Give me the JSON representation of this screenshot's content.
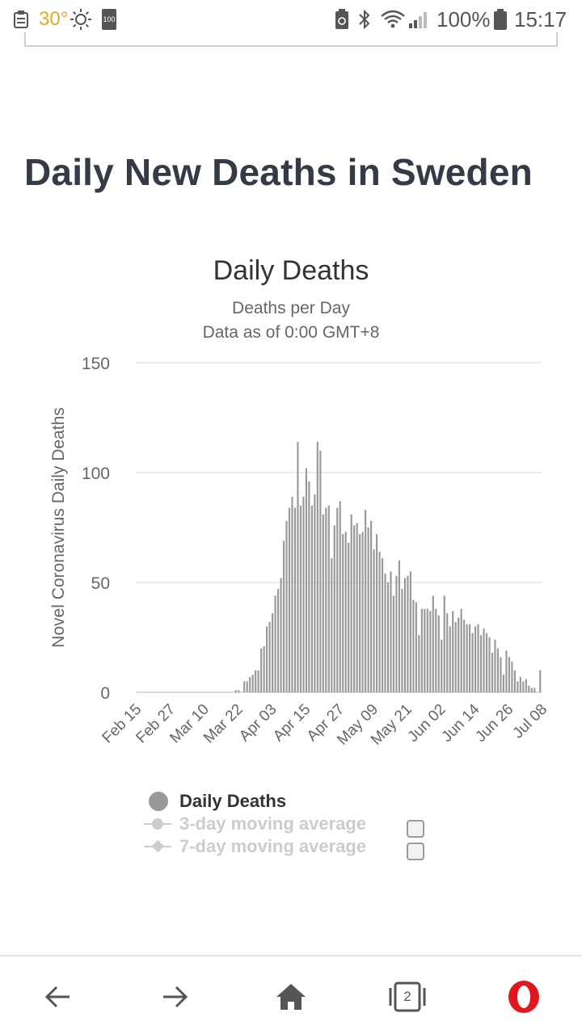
{
  "status_bar": {
    "temperature": "30°",
    "battery_small": "100",
    "battery_percent": "100%",
    "time": "15:17",
    "icons": [
      "clipboard-icon",
      "sun-icon",
      "battery-saver-icon",
      "bluetooth-icon",
      "wifi-icon",
      "signal-icon",
      "battery-icon"
    ]
  },
  "page": {
    "title": "Daily New Deaths in Sweden"
  },
  "chart_data": {
    "type": "bar",
    "title": "Daily Deaths",
    "subtitle_line1": "Deaths per Day",
    "subtitle_line2": "Data as of 0:00 GMT+8",
    "ylabel": "Novel Coronavirus Daily Deaths",
    "xlabel": "",
    "ylim": [
      0,
      150
    ],
    "yticks": [
      "0",
      "50",
      "100",
      "150"
    ],
    "xtick_labels": [
      "Feb 15",
      "Feb 27",
      "Mar 10",
      "Mar 22",
      "Apr 03",
      "Apr 15",
      "Apr 27",
      "May 09",
      "May 21",
      "Jun 02",
      "Jun 14",
      "Jun 26",
      "Jul 08"
    ],
    "start_date": "Feb 15",
    "series": [
      {
        "name": "Daily Deaths",
        "values": [
          0,
          0,
          0,
          0,
          0,
          0,
          0,
          0,
          0,
          0,
          0,
          0,
          0,
          0,
          0,
          0,
          0,
          0,
          0,
          0,
          0,
          0,
          0,
          0,
          0,
          0,
          0,
          0,
          0,
          0,
          0,
          0,
          0,
          0,
          0,
          1,
          1,
          0,
          5,
          5,
          7,
          8,
          10,
          10,
          20,
          21,
          30,
          32,
          36,
          44,
          47,
          52,
          69,
          78,
          84,
          89,
          84,
          114,
          85,
          89,
          102,
          96,
          85,
          90,
          114,
          110,
          81,
          84,
          85,
          61,
          76,
          84,
          87,
          72,
          73,
          68,
          81,
          76,
          77,
          72,
          73,
          83,
          75,
          78,
          65,
          72,
          64,
          61,
          54,
          50,
          55,
          44,
          53,
          60,
          47,
          52,
          53,
          55,
          42,
          41,
          26,
          38,
          38,
          38,
          37,
          44,
          38,
          35,
          24,
          44,
          36,
          30,
          37,
          32,
          34,
          38,
          33,
          31,
          31,
          27,
          30,
          31,
          26,
          29,
          27,
          25,
          18,
          24,
          20,
          16,
          8,
          19,
          16,
          14,
          10,
          5,
          7,
          5,
          6,
          3,
          2,
          2,
          0,
          10
        ]
      }
    ],
    "legend": [
      {
        "name": "Daily Deaths",
        "enabled": true
      },
      {
        "name": "3-day moving average",
        "enabled": false
      },
      {
        "name": "7-day moving average",
        "enabled": false
      }
    ],
    "colors": {
      "bar": "#999999",
      "grid": "#e6e6e6",
      "baseline": "#bcd0e0"
    }
  },
  "bottom_nav": {
    "tab_count": "2",
    "icons": [
      "back-arrow-icon",
      "forward-arrow-icon",
      "home-icon",
      "tabs-icon",
      "opera-icon"
    ]
  }
}
